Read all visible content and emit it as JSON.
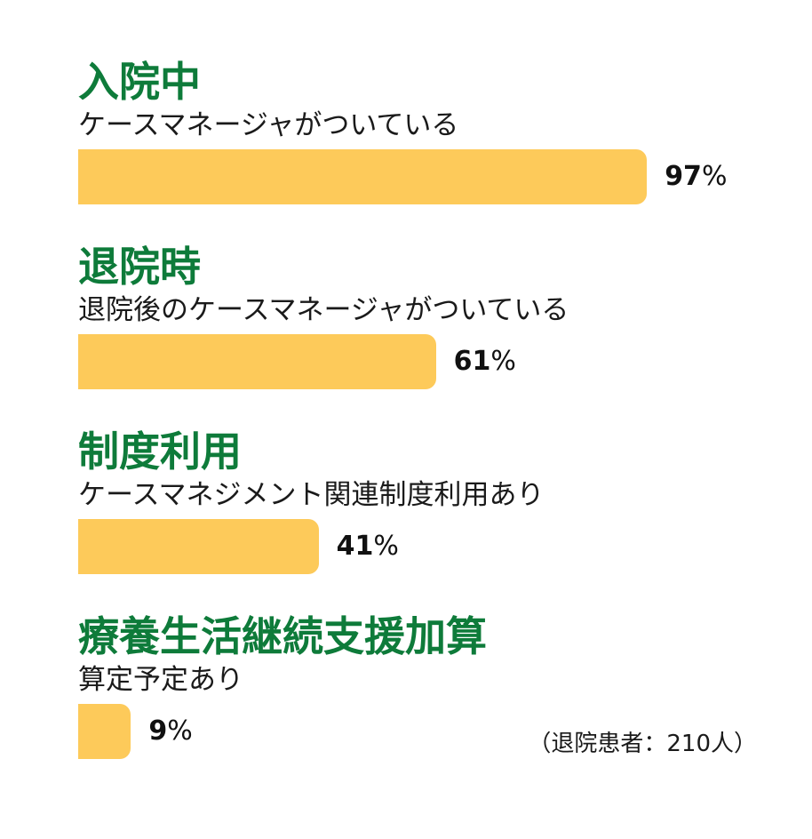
{
  "chart_data": {
    "type": "bar",
    "orientation": "horizontal",
    "xlim": [
      0,
      100
    ],
    "unit": "%",
    "categories": [
      {
        "heading": "入院中",
        "subtitle": "ケースマネージャがついている",
        "value": 97
      },
      {
        "heading": "退院時",
        "subtitle": "退院後のケースマネージャがついている",
        "value": 61
      },
      {
        "heading": "制度利用",
        "subtitle": "ケースマネジメント関連制度利用あり",
        "value": 41
      },
      {
        "heading": "療養生活継続支援加算",
        "subtitle": "算定予定あり",
        "value": 9
      }
    ],
    "footnote": "（退院患者：210人）"
  },
  "colors": {
    "bar": "#fdca5a",
    "heading": "#0e7b3a"
  }
}
